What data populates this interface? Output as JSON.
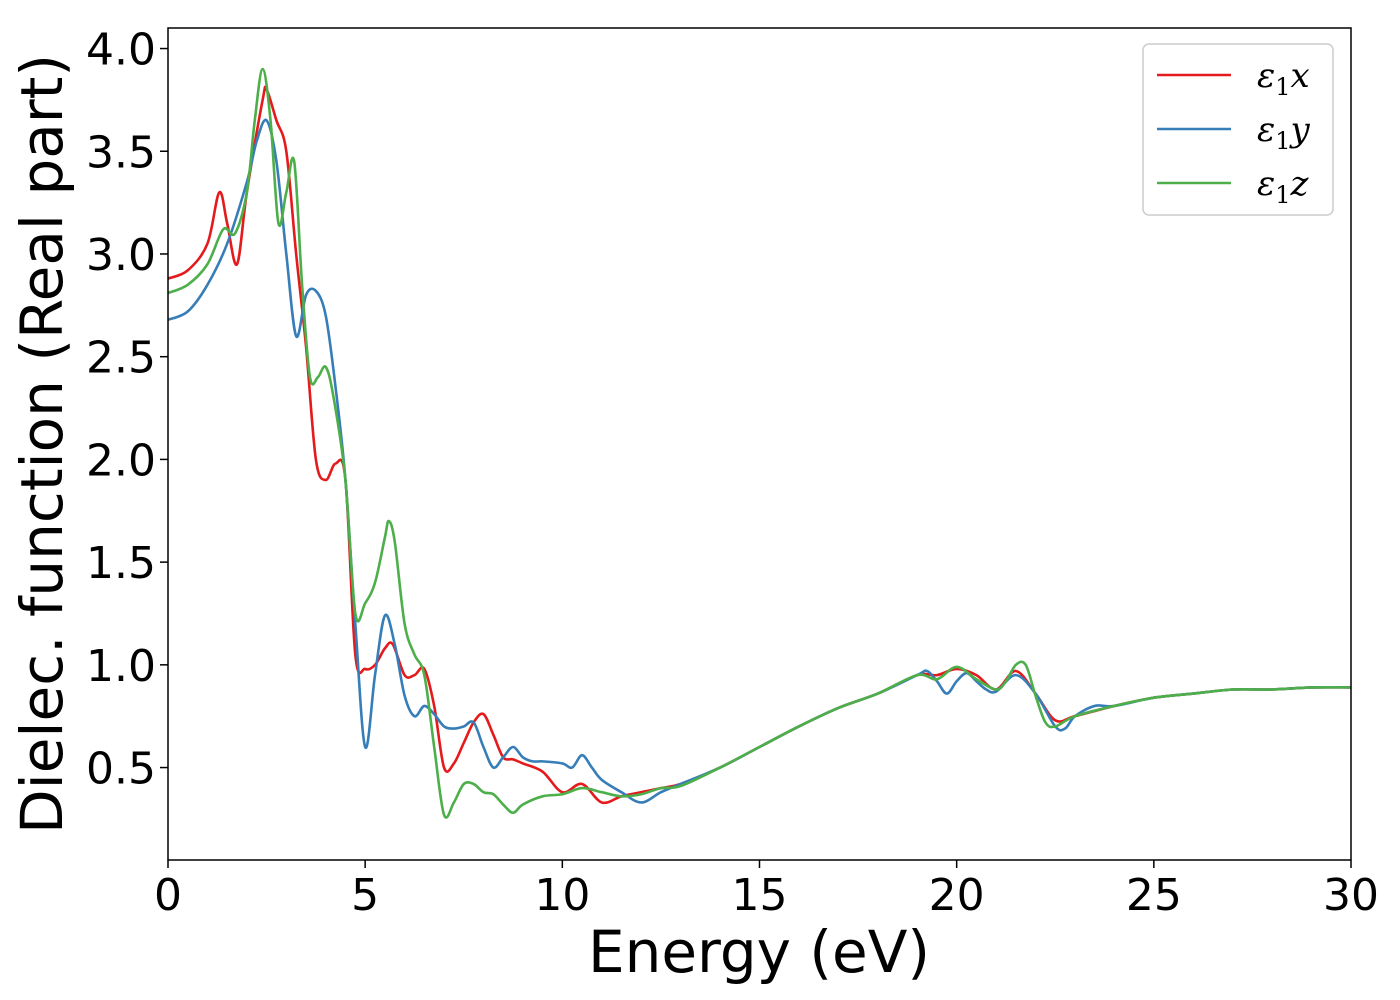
{
  "chart_data": {
    "type": "line",
    "xlabel": "Energy (eV)",
    "ylabel": "Dielec. function (Real part)",
    "xlim": [
      0,
      30
    ],
    "ylim": [
      0.05,
      4.1
    ],
    "xticks": [
      0,
      5,
      10,
      15,
      20,
      25,
      30
    ],
    "yticks": [
      0.5,
      1.0,
      1.5,
      2.0,
      2.5,
      3.0,
      3.5,
      4.0
    ],
    "xtick_labels": [
      "0",
      "5",
      "10",
      "15",
      "20",
      "25",
      "30"
    ],
    "ytick_labels": [
      "0.5",
      "1.0",
      "1.5",
      "2.0",
      "2.5",
      "3.0",
      "3.5",
      "4.0"
    ],
    "grid": false,
    "legend_position": "top-right",
    "series": [
      {
        "name": "ε₁x",
        "legend_main": "ε",
        "legend_sub": "1",
        "legend_var": "x",
        "color": "#e41a1c",
        "x": [
          0,
          0.5,
          1.0,
          1.3,
          1.5,
          1.75,
          2.0,
          2.4,
          2.5,
          2.75,
          3.0,
          3.25,
          3.5,
          3.75,
          4.0,
          4.25,
          4.5,
          4.75,
          5.0,
          5.25,
          5.5,
          5.7,
          6.0,
          6.25,
          6.5,
          6.75,
          7.0,
          7.25,
          7.5,
          7.75,
          8.0,
          8.25,
          8.5,
          8.75,
          9.0,
          9.5,
          10.0,
          10.5,
          11.0,
          11.5,
          12.0,
          12.5,
          13.0,
          14.0,
          15.0,
          16.0,
          17.0,
          18.0,
          19.0,
          19.5,
          20.0,
          20.5,
          21.0,
          21.5,
          22.0,
          22.5,
          23.0,
          24.0,
          25.0,
          26.0,
          27.0,
          28.0,
          29.0,
          30.0
        ],
        "y": [
          2.88,
          2.92,
          3.05,
          3.3,
          3.15,
          2.95,
          3.3,
          3.75,
          3.8,
          3.65,
          3.5,
          3.0,
          2.55,
          2.0,
          1.9,
          1.98,
          1.9,
          1.05,
          0.98,
          1.0,
          1.08,
          1.1,
          0.95,
          0.95,
          0.98,
          0.8,
          0.5,
          0.52,
          0.62,
          0.72,
          0.76,
          0.66,
          0.55,
          0.54,
          0.52,
          0.48,
          0.38,
          0.42,
          0.33,
          0.36,
          0.38,
          0.4,
          0.42,
          0.5,
          0.6,
          0.7,
          0.79,
          0.86,
          0.95,
          0.95,
          0.98,
          0.95,
          0.88,
          0.97,
          0.86,
          0.73,
          0.75,
          0.8,
          0.84,
          0.86,
          0.88,
          0.88,
          0.89,
          0.89
        ]
      },
      {
        "name": "ε₁y",
        "legend_main": "ε",
        "legend_sub": "1",
        "legend_var": "y",
        "color": "#377eb8",
        "x": [
          0,
          0.5,
          1.0,
          1.5,
          2.0,
          2.25,
          2.5,
          2.75,
          3.0,
          3.25,
          3.5,
          3.75,
          4.0,
          4.25,
          4.5,
          4.75,
          5.0,
          5.25,
          5.5,
          5.75,
          6.0,
          6.25,
          6.5,
          6.75,
          7.0,
          7.25,
          7.5,
          7.75,
          8.0,
          8.25,
          8.5,
          8.75,
          9.0,
          9.25,
          9.5,
          10.0,
          10.25,
          10.5,
          10.75,
          11.0,
          11.5,
          12.0,
          12.5,
          13.0,
          14.0,
          15.0,
          16.0,
          17.0,
          18.0,
          19.0,
          19.25,
          19.5,
          19.75,
          20.0,
          20.25,
          20.5,
          20.75,
          21.0,
          21.5,
          22.0,
          22.5,
          22.75,
          23.0,
          23.5,
          24.0,
          25.0,
          26.0,
          27.0,
          28.0,
          29.0,
          30.0
        ],
        "y": [
          2.68,
          2.72,
          2.85,
          3.05,
          3.35,
          3.55,
          3.65,
          3.45,
          3.0,
          2.6,
          2.8,
          2.82,
          2.7,
          2.35,
          1.9,
          1.2,
          0.6,
          0.95,
          1.24,
          1.1,
          0.85,
          0.75,
          0.8,
          0.76,
          0.7,
          0.69,
          0.7,
          0.72,
          0.6,
          0.5,
          0.55,
          0.6,
          0.55,
          0.53,
          0.53,
          0.52,
          0.5,
          0.56,
          0.5,
          0.44,
          0.38,
          0.33,
          0.38,
          0.42,
          0.5,
          0.6,
          0.7,
          0.79,
          0.86,
          0.95,
          0.97,
          0.92,
          0.86,
          0.92,
          0.96,
          0.92,
          0.88,
          0.87,
          0.95,
          0.86,
          0.7,
          0.69,
          0.75,
          0.8,
          0.8,
          0.84,
          0.86,
          0.88,
          0.88,
          0.89,
          0.89
        ]
      },
      {
        "name": "ε₁z",
        "legend_main": "ε",
        "legend_sub": "1",
        "legend_var": "z",
        "color": "#4daf4a",
        "x": [
          0,
          0.5,
          1.0,
          1.4,
          1.7,
          2.0,
          2.2,
          2.4,
          2.6,
          2.8,
          3.0,
          3.2,
          3.4,
          3.6,
          3.8,
          4.0,
          4.2,
          4.5,
          4.75,
          5.0,
          5.25,
          5.5,
          5.6,
          5.75,
          6.0,
          6.25,
          6.5,
          6.75,
          7.0,
          7.25,
          7.5,
          7.75,
          8.0,
          8.25,
          8.5,
          8.75,
          9.0,
          9.5,
          10.0,
          10.5,
          11.0,
          11.5,
          12.0,
          12.5,
          13.0,
          14.0,
          15.0,
          16.0,
          17.0,
          18.0,
          19.0,
          19.5,
          20.0,
          20.5,
          21.0,
          21.25,
          21.5,
          21.75,
          22.0,
          22.25,
          22.5,
          23.0,
          24.0,
          25.0,
          26.0,
          27.0,
          28.0,
          29.0,
          30.0
        ],
        "y": [
          2.81,
          2.85,
          2.95,
          3.12,
          3.1,
          3.3,
          3.65,
          3.9,
          3.65,
          3.15,
          3.3,
          3.45,
          2.85,
          2.4,
          2.4,
          2.45,
          2.3,
          1.9,
          1.25,
          1.3,
          1.4,
          1.62,
          1.7,
          1.6,
          1.2,
          1.05,
          0.95,
          0.6,
          0.27,
          0.33,
          0.42,
          0.42,
          0.38,
          0.37,
          0.32,
          0.28,
          0.32,
          0.36,
          0.37,
          0.4,
          0.38,
          0.36,
          0.37,
          0.4,
          0.41,
          0.5,
          0.6,
          0.7,
          0.79,
          0.86,
          0.95,
          0.93,
          0.99,
          0.93,
          0.88,
          0.92,
          1.0,
          1.0,
          0.85,
          0.72,
          0.7,
          0.75,
          0.8,
          0.84,
          0.86,
          0.88,
          0.88,
          0.89,
          0.89
        ]
      }
    ]
  }
}
